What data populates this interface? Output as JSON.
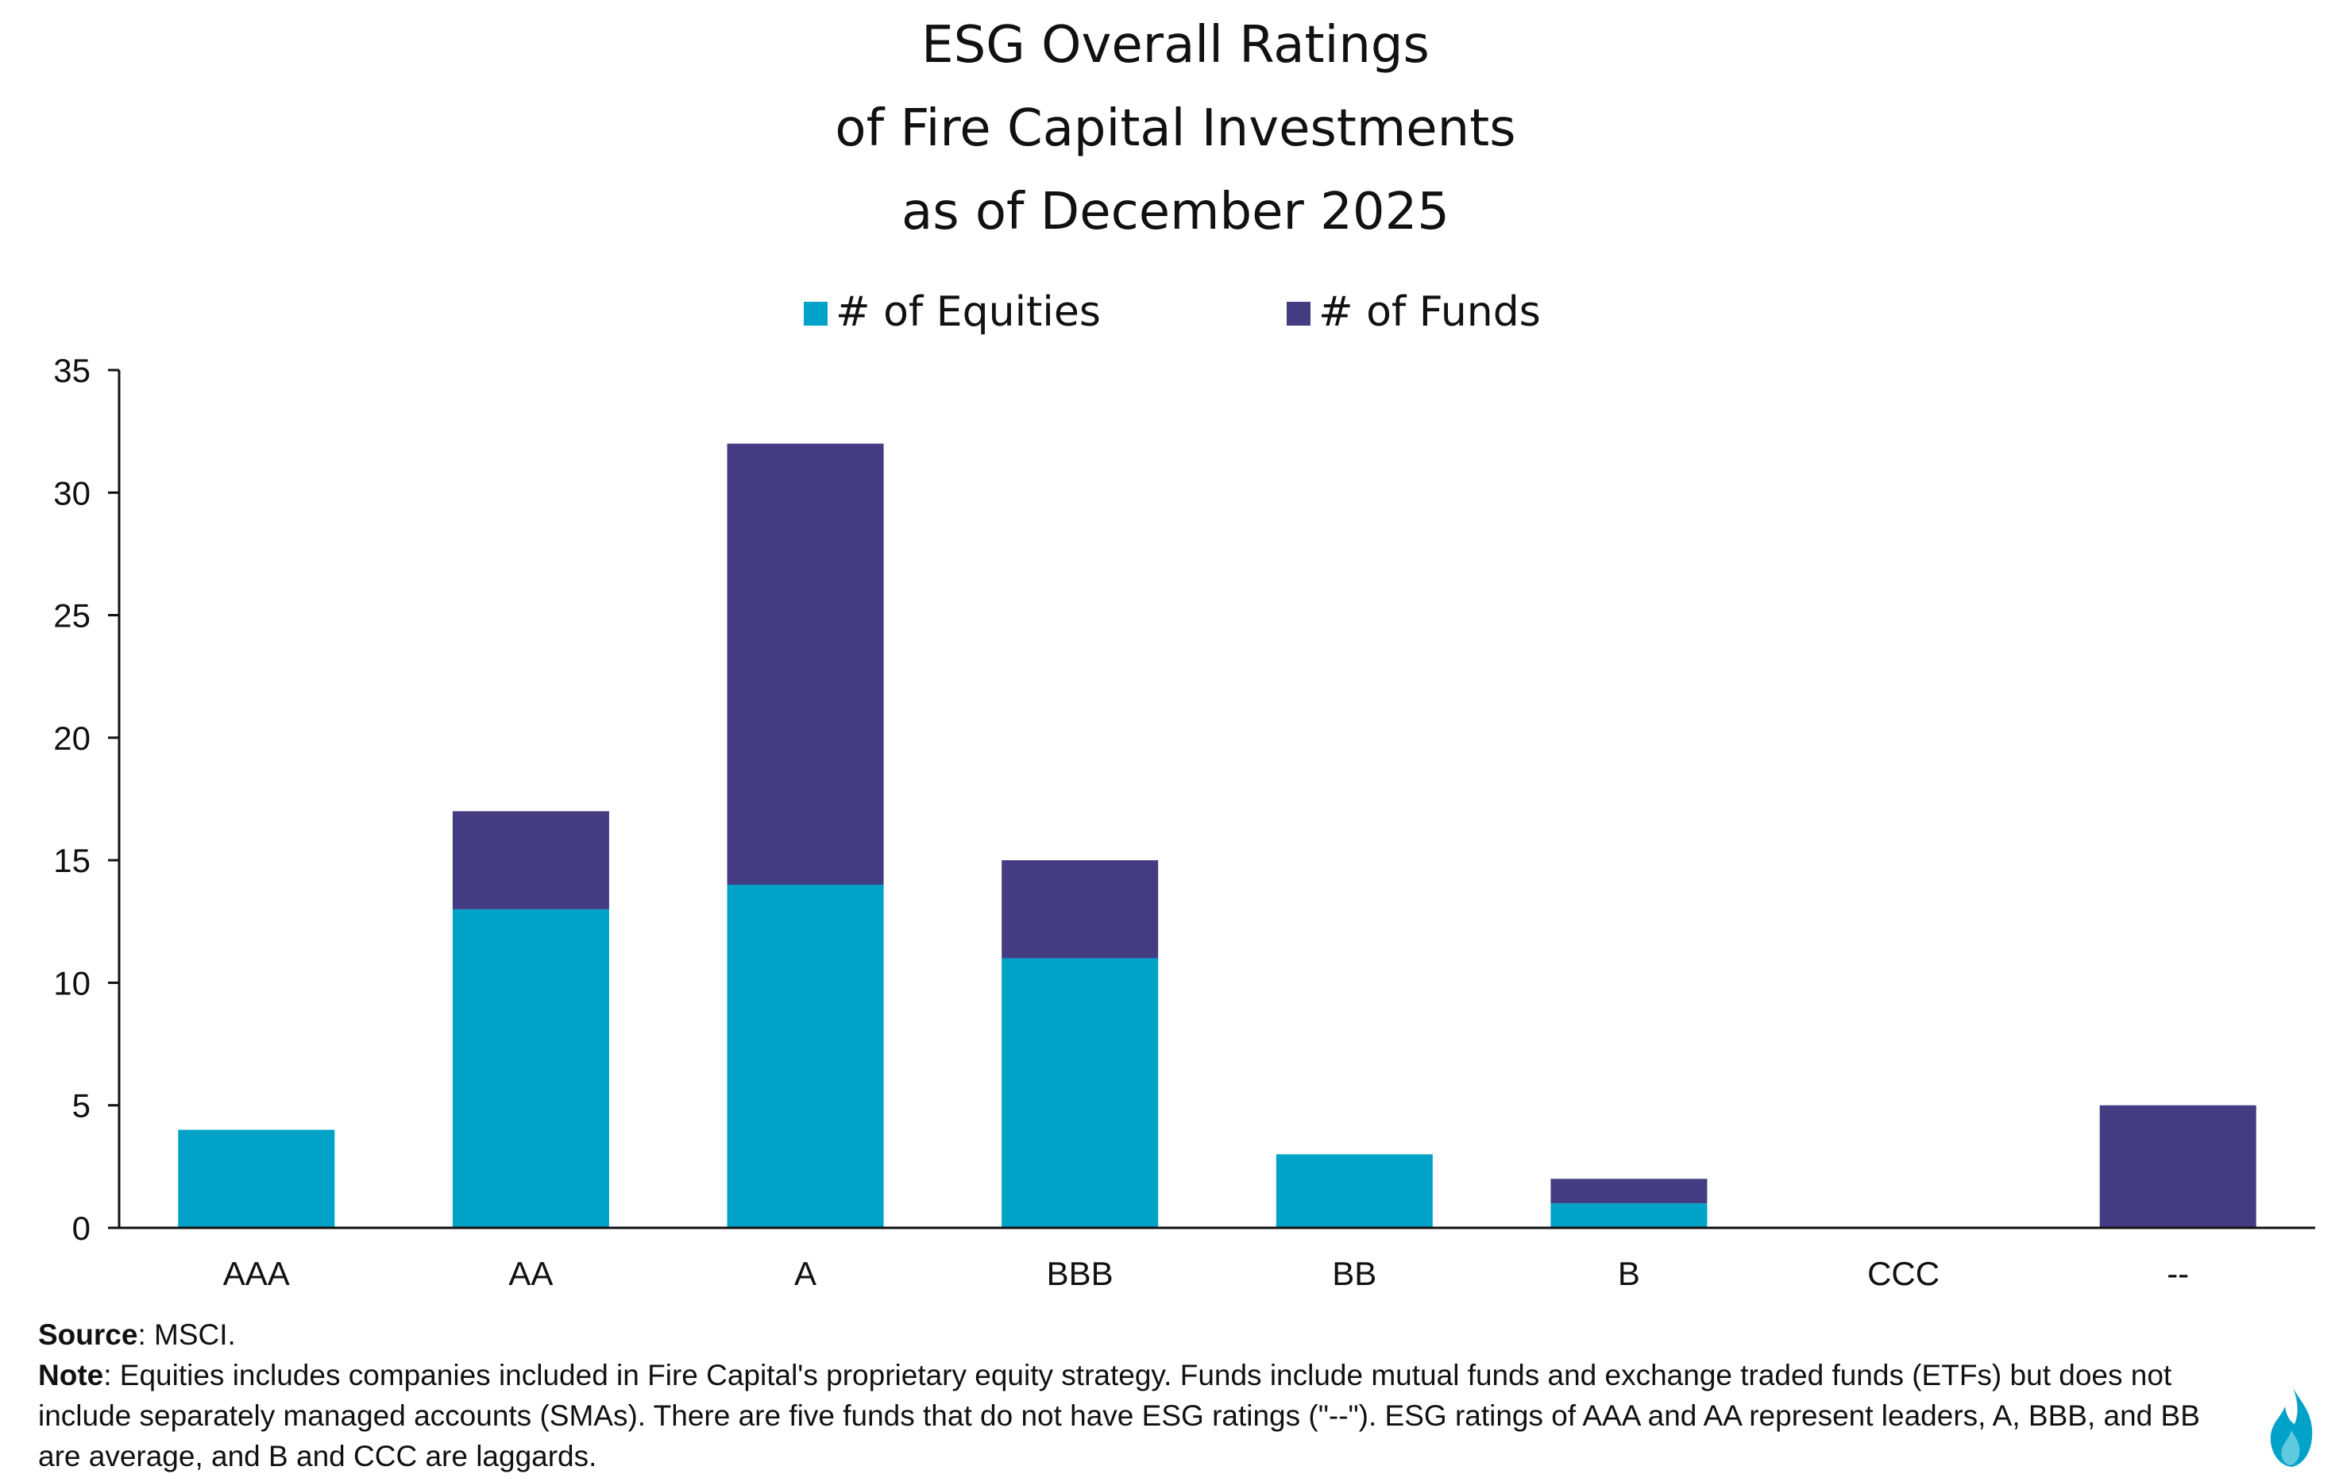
{
  "chart_data": {
    "type": "bar",
    "stacked": true,
    "title": [
      "ESG Overall Ratings",
      "of Fire Capital Investments",
      "as of December 2025"
    ],
    "categories": [
      "AAA",
      "AA",
      "A",
      "BBB",
      "BB",
      "B",
      "CCC",
      "--"
    ],
    "series": [
      {
        "name": "# of Equities",
        "color": "#00A3C7",
        "values": [
          4,
          13,
          14,
          11,
          3,
          1,
          0,
          0
        ]
      },
      {
        "name": "# of Funds",
        "color": "#443C82",
        "values": [
          0,
          4,
          18,
          4,
          0,
          1,
          0,
          5
        ]
      }
    ],
    "ylim": [
      0,
      35
    ],
    "yticks": [
      "0",
      "5",
      "10",
      "15",
      "20",
      "25",
      "30",
      "35"
    ],
    "xlabel": "",
    "ylabel": "",
    "grid": false,
    "legend_position": "top-center"
  },
  "footnotes": {
    "source_label": "Source",
    "source_text": ": MSCI.",
    "note_label": "Note",
    "note_text": ": Equities includes companies included in Fire Capital's proprietary equity strategy. Funds include mutual funds and exchange traded funds (ETFs) but does not include separately managed accounts (SMAs). There are five funds that do not have ESG ratings (\"--\"). ESG ratings of AAA and AA represent leaders, A, BBB, and BB are average, and B and CCC are laggards."
  },
  "logo": {
    "icon": "flame-icon",
    "colors": [
      "#00A3C7",
      "#5FC9E0"
    ]
  }
}
